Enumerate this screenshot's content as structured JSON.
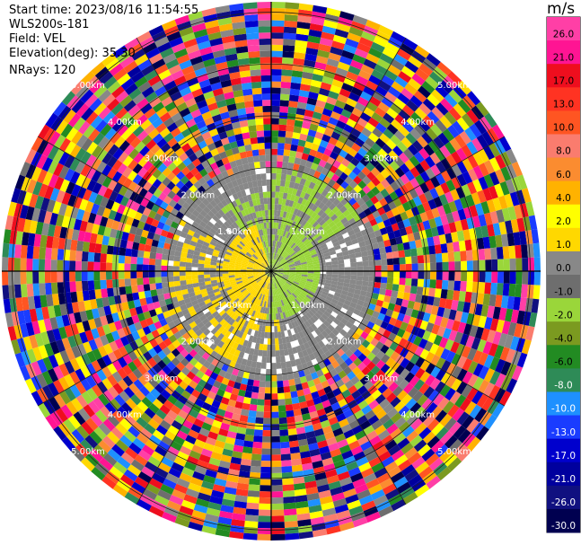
{
  "header": {
    "start_time": "Start time: 2023/08/16 11:54:55",
    "instrument": "WLS200s-181",
    "field": "Field: VEL",
    "elevation": "Elevation(deg): 35.30",
    "nrays": "NRays: 120"
  },
  "chart_data": {
    "type": "heatmap",
    "projection": "polar",
    "nrays": 120,
    "range_ring_labels": [
      "1.00km",
      "2.00km",
      "3.00km",
      "4.00km",
      "5.00km"
    ],
    "range_rings_km": [
      1,
      2,
      3,
      4,
      5
    ],
    "max_range_km": 5.2,
    "colorbar": {
      "unit": "m/s",
      "ticks": [
        "26.0",
        "21.0",
        "17.0",
        "13.0",
        "10.0",
        "8.0",
        "6.0",
        "4.0",
        "2.0",
        "1.0",
        "0.0",
        "-1.0",
        "-2.0",
        "-4.0",
        "-6.0",
        "-8.0",
        "-10.0",
        "-13.0",
        "-17.0",
        "-21.0",
        "-26.0",
        "-30.0"
      ],
      "colors": [
        "#ff3fa6",
        "#ff1493",
        "#ee0e1e",
        "#ff3322",
        "#ff5522",
        "#fa7c6e",
        "#fb8c30",
        "#ffb200",
        "#ffff00",
        "#ffd800",
        "#888888",
        "#6e6e6e",
        "#9ad63a",
        "#7b9a20",
        "#228b22",
        "#2e8b57",
        "#1e90ff",
        "#1a3cff",
        "#0000cd",
        "#00009e",
        "#101080",
        "#000050"
      ]
    },
    "inner_zone": {
      "extent_km": 2.0,
      "description_colors": {
        "approaching": "#ffd800",
        "receding": "#9ad63a",
        "neutral": "#888888"
      }
    }
  }
}
